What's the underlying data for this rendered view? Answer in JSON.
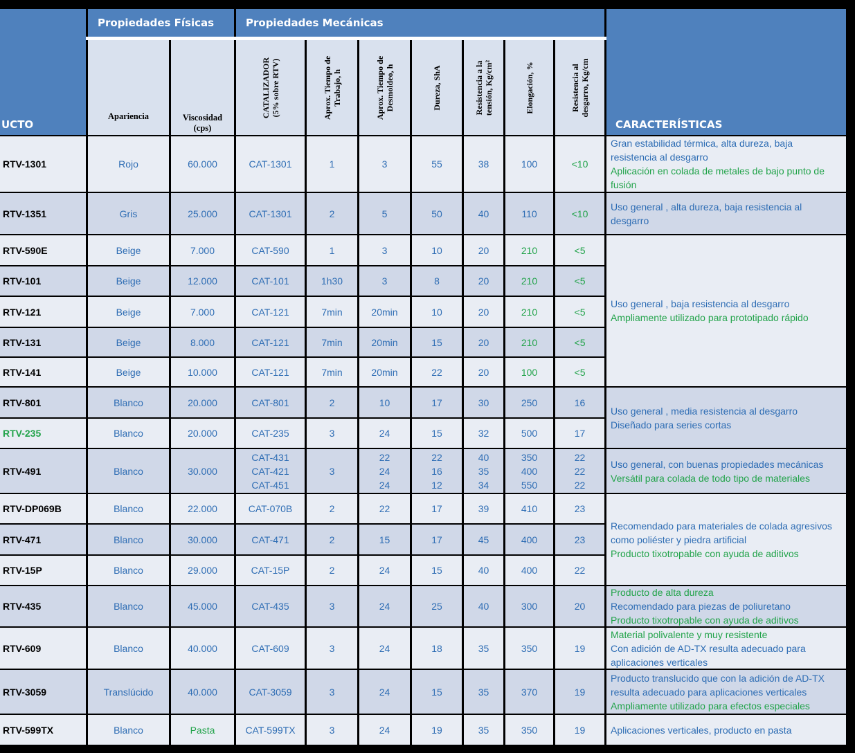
{
  "header": {
    "group_fisicas": "Propiedades Físicas",
    "group_mecanicas": "Propiedades Mecánicas",
    "producto": "UCTO",
    "caracteristicas": "CARACTERÍSTICAS",
    "cols": {
      "apariencia": "Apariencia",
      "viscosidad": "Viscosidad\n(cps)",
      "catalizador": "CATALIZADOR\n(5% sobre RTV)",
      "tiempo_trabajo": "Aprox. Tiempo de\nTrabajo, h",
      "tiempo_desmoldeo": "Aprox. Tiempo de\nDesmoldeo, h",
      "dureza": "Dureza, ShA",
      "tension": "Resistencia a la\ntensión, Kg/cm²",
      "elongacion": "Elongación, %",
      "desgarro": "Resistencia al\ndesgarro, Kg/cm"
    }
  },
  "colors": {
    "header_blue": "#4f81bd",
    "row_light": "#e9edf4",
    "row_dark": "#d0d8e8",
    "text_blue": "#2e6db4",
    "text_green": "#22a34a"
  },
  "rows": [
    {
      "producto": "RTV-1301",
      "apariencia": "Rojo",
      "viscosidad": "60.000",
      "catalizador": "CAT-1301",
      "trabajo": "1",
      "desmoldeo": "3",
      "dureza": "55",
      "tension": "38",
      "elongacion": "100",
      "desgarro": "<10"
    },
    {
      "producto": "RTV-1351",
      "apariencia": "Gris",
      "viscosidad": "25.000",
      "catalizador": "CAT-1301",
      "trabajo": "2",
      "desmoldeo": "5",
      "dureza": "50",
      "tension": "40",
      "elongacion": "110",
      "desgarro": "<10"
    },
    {
      "producto": "RTV-590E",
      "apariencia": "Beige",
      "viscosidad": "7.000",
      "catalizador": "CAT-590",
      "trabajo": "1",
      "desmoldeo": "3",
      "dureza": "10",
      "tension": "20",
      "elongacion": "210",
      "desgarro": "<5"
    },
    {
      "producto": "RTV-101",
      "apariencia": "Beige",
      "viscosidad": "12.000",
      "catalizador": "CAT-101",
      "trabajo": "1h30",
      "desmoldeo": "3",
      "dureza": "8",
      "tension": "20",
      "elongacion": "210",
      "desgarro": "<5"
    },
    {
      "producto": "RTV-121",
      "apariencia": "Beige",
      "viscosidad": "7.000",
      "catalizador": "CAT-121",
      "trabajo": "7min",
      "desmoldeo": "20min",
      "dureza": "10",
      "tension": "20",
      "elongacion": "210",
      "desgarro": "<5"
    },
    {
      "producto": "RTV-131",
      "apariencia": "Beige",
      "viscosidad": "8.000",
      "catalizador": "CAT-121",
      "trabajo": "7min",
      "desmoldeo": "20min",
      "dureza": "15",
      "tension": "20",
      "elongacion": "210",
      "desgarro": "<5"
    },
    {
      "producto": "RTV-141",
      "apariencia": "Beige",
      "viscosidad": "10.000",
      "catalizador": "CAT-121",
      "trabajo": "7min",
      "desmoldeo": "20min",
      "dureza": "22",
      "tension": "20",
      "elongacion": "100",
      "desgarro": "<5"
    },
    {
      "producto": "RTV-801",
      "apariencia": "Blanco",
      "viscosidad": "20.000",
      "catalizador": "CAT-801",
      "trabajo": "2",
      "desmoldeo": "10",
      "dureza": "17",
      "tension": "30",
      "elongacion": "250",
      "desgarro": "16"
    },
    {
      "producto": "RTV-235",
      "apariencia": "Blanco",
      "viscosidad": "20.000",
      "catalizador": "CAT-235",
      "trabajo": "3",
      "desmoldeo": "24",
      "dureza": "15",
      "tension": "32",
      "elongacion": "500",
      "desgarro": "17"
    },
    {
      "producto": "RTV-491",
      "apariencia": "Blanco",
      "viscosidad": "30.000",
      "catalizador": [
        "CAT-431",
        "CAT-421",
        "CAT-451"
      ],
      "trabajo": "3",
      "desmoldeo": [
        "22",
        "24",
        "24"
      ],
      "dureza": [
        "22",
        "16",
        "12"
      ],
      "tension": [
        "40",
        "35",
        "34"
      ],
      "elongacion": [
        "350",
        "400",
        "550"
      ],
      "desgarro": [
        "22",
        "22",
        "22"
      ]
    },
    {
      "producto": "RTV-DP069B",
      "apariencia": "Blanco",
      "viscosidad": "22.000",
      "catalizador": "CAT-070B",
      "trabajo": "2",
      "desmoldeo": "22",
      "dureza": "17",
      "tension": "39",
      "elongacion": "410",
      "desgarro": "23"
    },
    {
      "producto": "RTV-471",
      "apariencia": "Blanco",
      "viscosidad": "30.000",
      "catalizador": "CAT-471",
      "trabajo": "2",
      "desmoldeo": "15",
      "dureza": "17",
      "tension": "45",
      "elongacion": "400",
      "desgarro": "23"
    },
    {
      "producto": "RTV-15P",
      "apariencia": "Blanco",
      "viscosidad": "29.000",
      "catalizador": "CAT-15P",
      "trabajo": "2",
      "desmoldeo": "24",
      "dureza": "15",
      "tension": "40",
      "elongacion": "400",
      "desgarro": "22"
    },
    {
      "producto": "RTV-435",
      "apariencia": "Blanco",
      "viscosidad": "45.000",
      "catalizador": "CAT-435",
      "trabajo": "3",
      "desmoldeo": "24",
      "dureza": "25",
      "tension": "40",
      "elongacion": "300",
      "desgarro": "20"
    },
    {
      "producto": "RTV-609",
      "apariencia": "Blanco",
      "viscosidad": "40.000",
      "catalizador": "CAT-609",
      "trabajo": "3",
      "desmoldeo": "24",
      "dureza": "18",
      "tension": "35",
      "elongacion": "350",
      "desgarro": "19"
    },
    {
      "producto": "RTV-3059",
      "apariencia": "Translúcido",
      "viscosidad": "40.000",
      "catalizador": "CAT-3059",
      "trabajo": "3",
      "desmoldeo": "24",
      "dureza": "15",
      "tension": "35",
      "elongacion": "370",
      "desgarro": "19"
    },
    {
      "producto": "RTV-599TX",
      "apariencia": "Blanco",
      "viscosidad": "Pasta",
      "catalizador": "CAT-599TX",
      "trabajo": "3",
      "desmoldeo": "24",
      "dureza": "19",
      "tension": "35",
      "elongacion": "350",
      "desgarro": "19"
    }
  ],
  "caracteristicas": [
    {
      "lines": [
        {
          "t": "Gran estabilidad térmica, alta dureza, baja",
          "c": "b"
        },
        {
          "t": "resistencia al desgarro",
          "c": "b"
        },
        {
          "t": "Aplicación en colada de metales de bajo punto de",
          "c": "g"
        },
        {
          "t": "fusión",
          "c": "g"
        }
      ]
    },
    {
      "lines": [
        {
          "t": "Uso general , alta dureza, baja resistencia al",
          "c": "b"
        },
        {
          "t": "desgarro",
          "c": "b"
        }
      ]
    },
    {
      "lines": [
        {
          "t": "Uso general , baja resistencia al desgarro",
          "c": "b"
        },
        {
          "t": "Ampliamente utilizado para prototipado rápido",
          "c": "g"
        }
      ]
    },
    {
      "lines": [
        {
          "t": "Uso general , media resistencia al desgarro",
          "c": "b"
        },
        {
          "t": "Diseñado para series cortas",
          "c": "b"
        }
      ]
    },
    {
      "lines": [
        {
          "t": "Uso general, con buenas propiedades mecánicas",
          "c": "b"
        },
        {
          "t": "Versátil para colada de todo tipo de materiales",
          "c": "g"
        }
      ]
    },
    {
      "lines": [
        {
          "t": "Recomendado para materiales de colada agresivos",
          "c": "b"
        },
        {
          "t": "como poliéster y piedra artificial",
          "c": "b"
        },
        {
          "t": "Producto tixotropable con ayuda de aditivos",
          "c": "g"
        }
      ]
    },
    {
      "lines": [
        {
          "t": "Producto de alta dureza",
          "c": "g"
        },
        {
          "t": "Recomendado para piezas de poliuretano",
          "c": "b"
        },
        {
          "t": "Producto tixotropable con ayuda de aditivos",
          "c": "g"
        }
      ]
    },
    {
      "lines": [
        {
          "t": "Material polivalente y muy resistente",
          "c": "g"
        },
        {
          "t": "Con adición de AD-TX resulta adecuado para",
          "c": "b"
        },
        {
          "t": "aplicaciones verticales",
          "c": "b"
        }
      ]
    },
    {
      "lines": [
        {
          "t": "Producto translucido que con la adición de AD-TX",
          "c": "b"
        },
        {
          "t": "resulta adecuado para aplicaciones verticales",
          "c": "b"
        },
        {
          "t": "Ampliamente utilizado para efectos especiales",
          "c": "g"
        }
      ]
    },
    {
      "lines": [
        {
          "t": "Aplicaciones verticales, producto en pasta",
          "c": "b"
        }
      ]
    }
  ]
}
